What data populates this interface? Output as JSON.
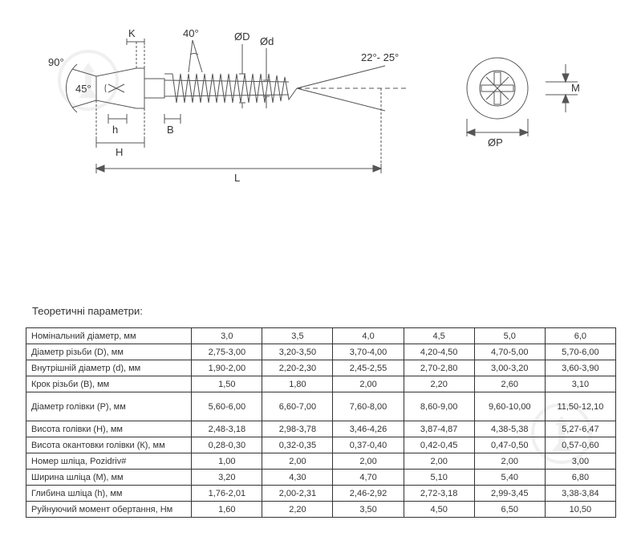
{
  "diagram": {
    "labels": {
      "angle90": "90°",
      "angle45": "45°",
      "angle40": "40°",
      "angle22_25": "22°- 25°",
      "K": "K",
      "D": "ØD",
      "d": "Ød",
      "h": "h",
      "H": "H",
      "B": "B",
      "L": "L",
      "M": "M",
      "P": "ØP"
    },
    "colors": {
      "stroke": "#555555",
      "text": "#333333",
      "fill": "#ffffff"
    },
    "line_width": 1,
    "font_size": 13
  },
  "table": {
    "title": "Теоретичні параметри:",
    "columns_count": 7,
    "header_col_width": 206,
    "data_col_width": 88,
    "border_color": "#333333",
    "font_size": 11,
    "text_color": "#333333",
    "background": "#ffffff",
    "rows": [
      {
        "label": "Номінальний діаметр, мм",
        "cells": [
          "3,0",
          "3,5",
          "4,0",
          "4,5",
          "5,0",
          "6,0"
        ]
      },
      {
        "label": "Діаметр різьби (D), мм",
        "cells": [
          "2,75-3,00",
          "3,20-3,50",
          "3,70-4,00",
          "4,20-4,50",
          "4,70-5,00",
          "5,70-6,00"
        ]
      },
      {
        "label": "Внутрішній діаметр (d), мм",
        "cells": [
          "1,90-2,00",
          "2,20-2,30",
          "2,45-2,55",
          "2,70-2,80",
          "3,00-3,20",
          "3,60-3,90"
        ]
      },
      {
        "label": "Крок різьби (В), мм",
        "cells": [
          "1,50",
          "1,80",
          "2,00",
          "2,20",
          "2,60",
          "3,10"
        ]
      },
      {
        "label": "Діаметр голівки (Р), мм",
        "tall": true,
        "cells": [
          "5,60-6,00",
          "6,60-7,00",
          "7,60-8,00",
          "8,60-9,00",
          "9,60-10,00",
          "11,50-12,10"
        ]
      },
      {
        "label": "Висота голівки (Н), мм",
        "cells": [
          "2,48-3,18",
          "2,98-3,78",
          "3,46-4,26",
          "3,87-4,87",
          "4,38-5,38",
          "5,27-6,47"
        ]
      },
      {
        "label": "Висота окантовки голівки (К), мм",
        "cells": [
          "0,28-0,30",
          "0,32-0,35",
          "0,37-0,40",
          "0,42-0,45",
          "0,47-0,50",
          "0,57-0,60"
        ]
      },
      {
        "label": "Номер шліца, Pozidriv#",
        "cells": [
          "1,00",
          "2,00",
          "2,00",
          "2,00",
          "2,00",
          "3,00"
        ]
      },
      {
        "label": "Ширина шліца (М), мм",
        "cells": [
          "3,20",
          "4,30",
          "4,70",
          "5,10",
          "5,40",
          "6,80"
        ]
      },
      {
        "label": "Глибина шліца (h), мм",
        "cells": [
          "1,76-2,01",
          "2,00-2,31",
          "2,46-2,92",
          "2,72-3,18",
          "2,99-3,45",
          "3,38-3,84"
        ]
      },
      {
        "label": "Руйнуючий момент обертання, Нм",
        "cells": [
          "1,60",
          "2,20",
          "3,50",
          "4,50",
          "6,50",
          "10,50"
        ]
      }
    ]
  },
  "watermark": {
    "color": "#888888",
    "size": 80
  }
}
